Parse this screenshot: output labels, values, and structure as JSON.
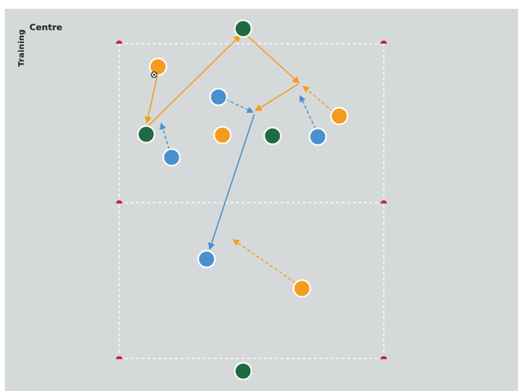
{
  "brand": {
    "word1": "Training",
    "word2": "Centre"
  },
  "colors": {
    "field_bg": "#d5d9d9",
    "boundary": "#ffffff",
    "cone": "#c8272b",
    "team_green": "#1d6b3f",
    "team_orange": "#f39c1d",
    "team_blue": "#4a90cf",
    "pass_arrow": "#f39c1d",
    "run_blue": "#4a90cf"
  },
  "icons": {
    "ball": "soccer-ball-icon",
    "cone": "cone-icon"
  }
}
